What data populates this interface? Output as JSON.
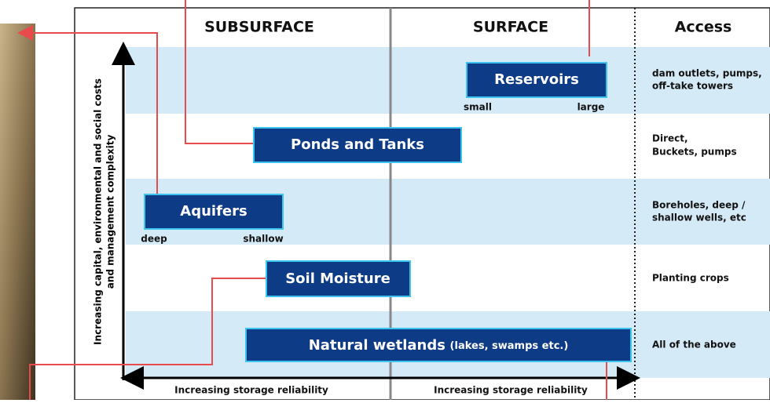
{
  "headers": {
    "subsurface": "SUBSURFACE",
    "surface": "SURFACE",
    "access": "Access"
  },
  "rows": [
    {
      "label": "Reservoirs",
      "ends": [
        "small",
        "large"
      ],
      "access": [
        "dam outlets, pumps,",
        "off-take towers"
      ]
    },
    {
      "label": "Ponds and Tanks",
      "access": [
        "Direct,",
        "Buckets, pumps"
      ]
    },
    {
      "label": "Aquifers",
      "ends": [
        "deep",
        "shallow"
      ],
      "access": [
        "Boreholes, deep /",
        "shallow wells, etc"
      ]
    },
    {
      "label": "Soil Moisture",
      "access": [
        "Planting crops"
      ]
    },
    {
      "label": "Natural wetlands",
      "note": "(lakes, swamps etc.)",
      "access": [
        "All of the above"
      ]
    }
  ],
  "y_axis_label": [
    "Increasing capital, environmental and social costs",
    "and management complexity"
  ],
  "x_axis_labels": [
    "Increasing storage reliability",
    "Increasing storage reliability"
  ]
}
